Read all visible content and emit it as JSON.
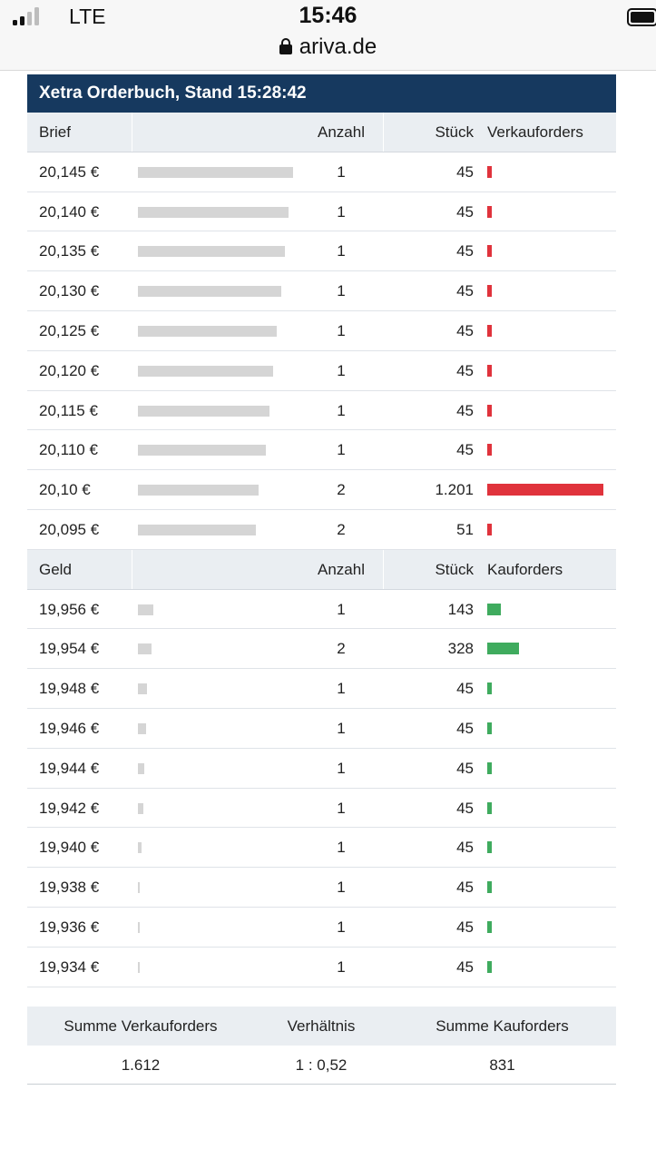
{
  "status": {
    "carrier": "LTE",
    "time": "15:46",
    "url": "ariva.de"
  },
  "orderbook": {
    "title": "Xetra Orderbuch, Stand 15:28:42",
    "sell_header": {
      "price": "Brief",
      "count": "Anzahl",
      "qty": "Stück",
      "orders": "Verkauforders"
    },
    "sell_rows": [
      {
        "price": "20,145 €",
        "count": "1",
        "qty": "45",
        "qty_value": 45,
        "volume_ratio": 1.0
      },
      {
        "price": "20,140 €",
        "count": "1",
        "qty": "45",
        "qty_value": 45,
        "volume_ratio": 0.972
      },
      {
        "price": "20,135 €",
        "count": "1",
        "qty": "45",
        "qty_value": 45,
        "volume_ratio": 0.947
      },
      {
        "price": "20,130 €",
        "count": "1",
        "qty": "45",
        "qty_value": 45,
        "volume_ratio": 0.922
      },
      {
        "price": "20,125 €",
        "count": "1",
        "qty": "45",
        "qty_value": 45,
        "volume_ratio": 0.897
      },
      {
        "price": "20,120 €",
        "count": "1",
        "qty": "45",
        "qty_value": 45,
        "volume_ratio": 0.872
      },
      {
        "price": "20,115 €",
        "count": "1",
        "qty": "45",
        "qty_value": 45,
        "volume_ratio": 0.847
      },
      {
        "price": "20,110 €",
        "count": "1",
        "qty": "45",
        "qty_value": 45,
        "volume_ratio": 0.822
      },
      {
        "price": "20,10 €",
        "count": "2",
        "qty": "1.201",
        "qty_value": 1201,
        "volume_ratio": 0.778
      },
      {
        "price": "20,095 €",
        "count": "2",
        "qty": "51",
        "qty_value": 51,
        "volume_ratio": 0.758
      }
    ],
    "buy_header": {
      "price": "Geld",
      "count": "Anzahl",
      "qty": "Stück",
      "orders": "Kauforders"
    },
    "buy_rows": [
      {
        "price": "19,956 €",
        "count": "1",
        "qty": "143",
        "qty_value": 143,
        "volume_ratio": 0.1
      },
      {
        "price": "19,954 €",
        "count": "2",
        "qty": "328",
        "qty_value": 328,
        "volume_ratio": 0.088
      },
      {
        "price": "19,948 €",
        "count": "1",
        "qty": "45",
        "qty_value": 45,
        "volume_ratio": 0.058
      },
      {
        "price": "19,946 €",
        "count": "1",
        "qty": "45",
        "qty_value": 45,
        "volume_ratio": 0.053
      },
      {
        "price": "19,944 €",
        "count": "1",
        "qty": "45",
        "qty_value": 45,
        "volume_ratio": 0.041
      },
      {
        "price": "19,942 €",
        "count": "1",
        "qty": "45",
        "qty_value": 45,
        "volume_ratio": 0.035
      },
      {
        "price": "19,940 €",
        "count": "1",
        "qty": "45",
        "qty_value": 45,
        "volume_ratio": 0.023
      },
      {
        "price": "19,938 €",
        "count": "1",
        "qty": "45",
        "qty_value": 45,
        "volume_ratio": 0.012
      },
      {
        "price": "19,936 €",
        "count": "1",
        "qty": "45",
        "qty_value": 45,
        "volume_ratio": 0.012
      },
      {
        "price": "19,934 €",
        "count": "1",
        "qty": "45",
        "qty_value": 45,
        "volume_ratio": 0.012
      }
    ]
  },
  "summary": {
    "sell_label": "Summe Verkauforders",
    "ratio_label": "Verhältnis",
    "buy_label": "Summe Kauforders",
    "sell_value": "1.612",
    "ratio_value": "1 : 0,52",
    "buy_value": "831"
  },
  "colors": {
    "header_bg": "#16395f",
    "sell": "#e0333c",
    "buy": "#3fab5e",
    "volume_bar": "#d5d5d5"
  }
}
